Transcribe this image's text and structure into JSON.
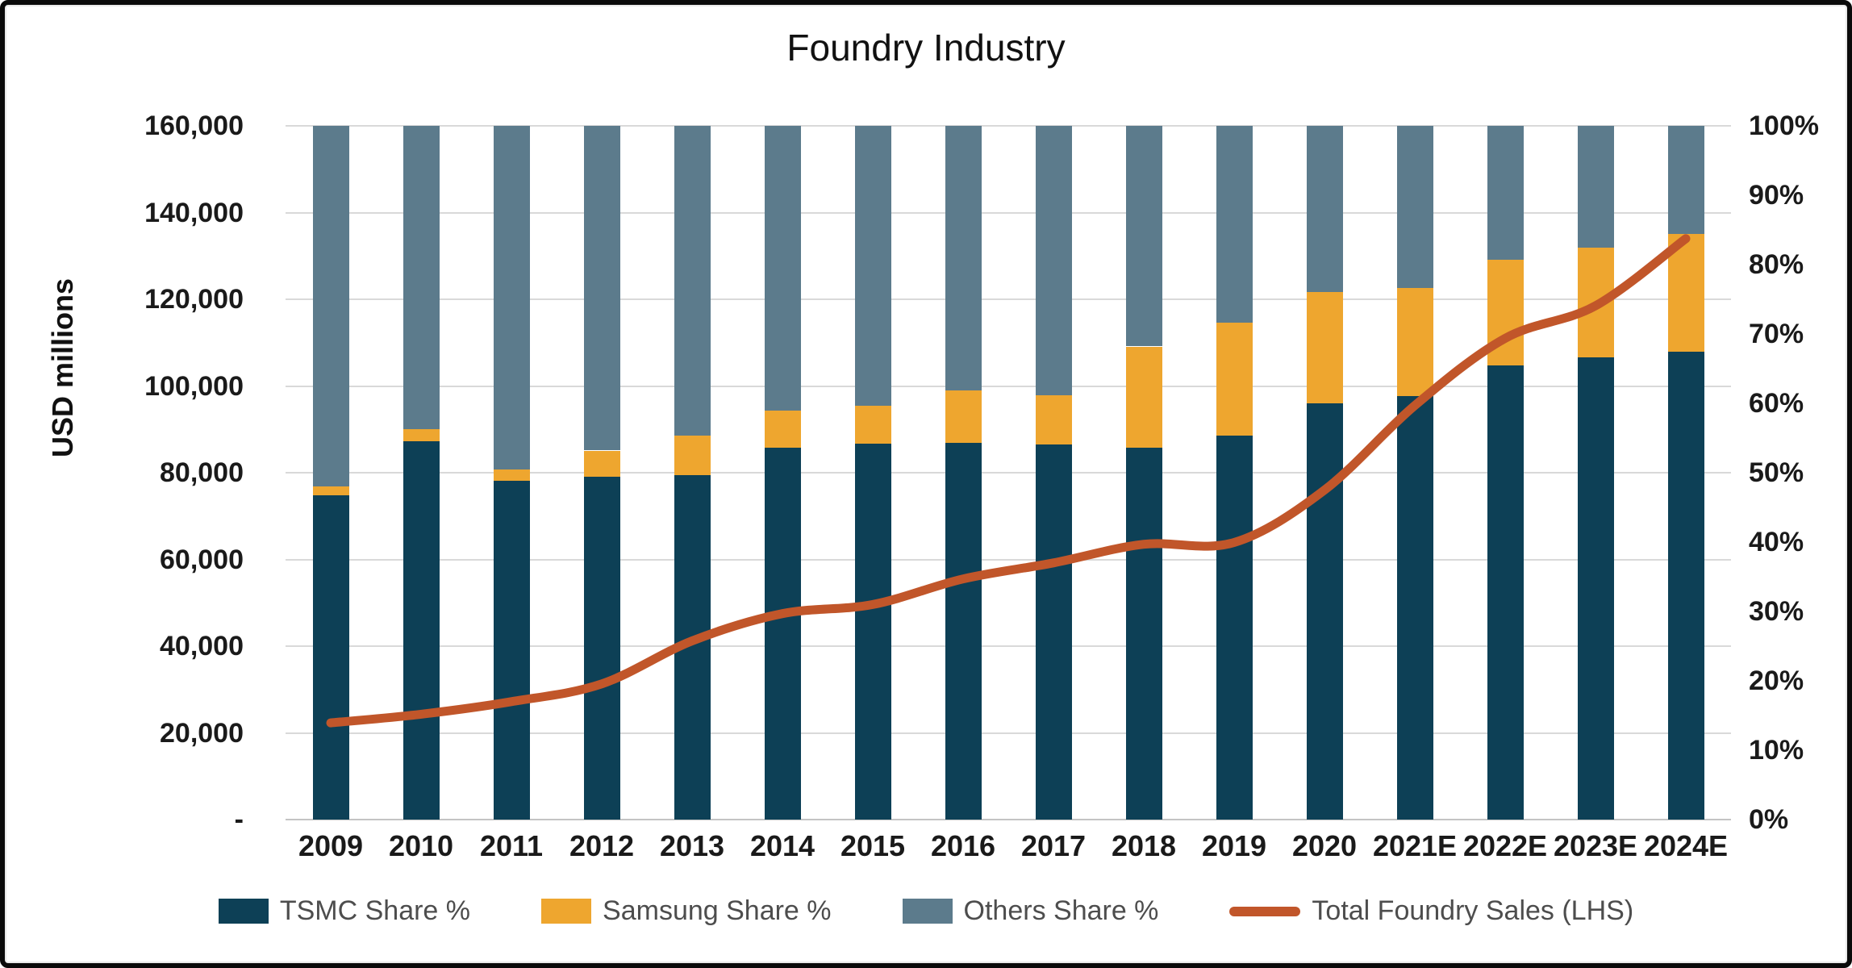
{
  "chart_data": {
    "type": "bar",
    "subtype": "stacked-percent-columns-with-line",
    "title": "Foundry Industry",
    "categories": [
      "2009",
      "2010",
      "2011",
      "2012",
      "2013",
      "2014",
      "2015",
      "2016",
      "2017",
      "2018",
      "2019",
      "2020",
      "2021E",
      "2022E",
      "2023E",
      "2024E"
    ],
    "series": [
      {
        "name": "TSMC Share %",
        "type": "bar",
        "axis": "right",
        "color": "#0d4056",
        "values": [
          46.7,
          54.5,
          48.8,
          49.4,
          49.7,
          53.6,
          54.2,
          54.3,
          54.1,
          53.6,
          55.4,
          60.0,
          61.1,
          65.5,
          66.6,
          67.4
        ]
      },
      {
        "name": "Samsung Share %",
        "type": "bar",
        "axis": "right",
        "color": "#eea62f",
        "values": [
          1.3,
          1.8,
          1.7,
          3.8,
          5.7,
          5.3,
          5.4,
          7.6,
          7.1,
          14.6,
          16.2,
          16.0,
          15.5,
          15.2,
          15.8,
          17.0
        ]
      },
      {
        "name": "Others Share %",
        "type": "bar",
        "axis": "right",
        "color": "#5c7b8c",
        "values": [
          52.0,
          43.7,
          49.5,
          46.8,
          44.6,
          41.1,
          40.4,
          38.1,
          38.8,
          31.8,
          28.4,
          24.0,
          23.4,
          19.3,
          17.6,
          15.6
        ]
      },
      {
        "name": "Total Foundry Sales (LHS)",
        "type": "line",
        "axis": "left",
        "color": "#c1562a",
        "values": [
          22300,
          24300,
          27200,
          31300,
          41200,
          47500,
          49600,
          55500,
          59200,
          63500,
          63900,
          76000,
          95500,
          111000,
          118500,
          134000
        ]
      }
    ],
    "left_axis": {
      "title": "USD millions",
      "min": 0,
      "max": 160000,
      "step": 20000,
      "zero_label": "-",
      "tick_labels": [
        "-",
        "20,000",
        "40,000",
        "60,000",
        "80,000",
        "100,000",
        "120,000",
        "140,000",
        "160,000"
      ]
    },
    "right_axis": {
      "min": 0,
      "max": 100,
      "step": 10,
      "tick_labels": [
        "0%",
        "10%",
        "20%",
        "30%",
        "40%",
        "50%",
        "60%",
        "70%",
        "80%",
        "90%",
        "100%"
      ]
    },
    "grid": "horizontal",
    "legend_position": "bottom",
    "colors": {
      "gridline": "#d9d9d9",
      "axis_line": "#c4c4c4",
      "tick_text": "#1a1a1a",
      "legend_text": "#4d4d4d",
      "background": "#ffffff",
      "frame_border": "#0a0a0a"
    }
  }
}
